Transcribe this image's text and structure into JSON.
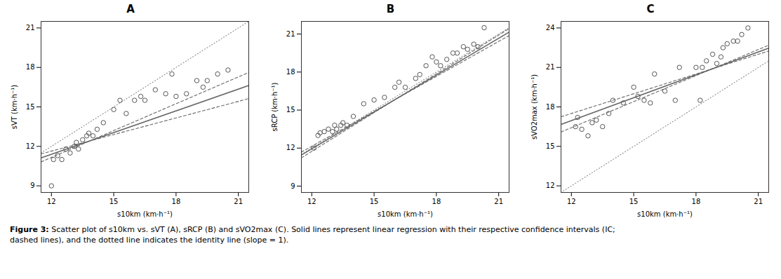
{
  "chart_data": [
    {
      "type": "scatter",
      "title": "A",
      "xlabel": "s10km (km·h⁻¹)",
      "ylabel": "sVT (km·h⁻¹)",
      "xlim": [
        11.5,
        21.5
      ],
      "ylim": [
        8.5,
        21.5
      ],
      "xticks": [
        12,
        15,
        18,
        21
      ],
      "yticks": [
        9,
        12,
        15,
        18,
        21
      ],
      "grid": false,
      "series": [
        {
          "type": "line",
          "line_style": "dotted",
          "color": "#888888",
          "x": [
            11.5,
            21.5
          ],
          "values": [
            11.5,
            21.5
          ]
        },
        {
          "type": "line",
          "line_style": "dashed",
          "color": "#666666",
          "x": [
            11.5,
            21.5
          ],
          "values": [
            10.82,
            17.62
          ]
        },
        {
          "type": "line",
          "line_style": "dashed",
          "color": "#666666",
          "x": [
            11.5,
            21.5
          ],
          "values": [
            11.43,
            15.63
          ]
        },
        {
          "type": "line",
          "line_style": "solid",
          "color": "#666666",
          "x": [
            11.5,
            21.5
          ],
          "values": [
            11.125,
            16.625
          ]
        },
        {
          "type": "scatter",
          "marker": "o",
          "color": "#555555",
          "x": [
            12.0,
            12.1,
            12.3,
            12.5,
            12.7,
            12.9,
            13.1,
            13.2,
            13.3,
            13.5,
            13.7,
            13.8,
            14.0,
            14.2,
            14.5,
            15.0,
            15.3,
            15.6,
            16.0,
            16.3,
            16.5,
            17.0,
            17.5,
            17.8,
            18.0,
            18.5,
            19.0,
            19.3,
            19.5,
            20.0,
            20.5
          ],
          "values": [
            9.0,
            11.0,
            11.3,
            11.0,
            11.8,
            11.5,
            12.0,
            12.3,
            11.8,
            12.5,
            12.8,
            13.0,
            12.8,
            13.3,
            13.8,
            14.8,
            15.5,
            14.5,
            15.5,
            15.8,
            15.5,
            16.3,
            16.0,
            17.5,
            15.8,
            16.0,
            17.0,
            16.5,
            17.0,
            17.5,
            17.8
          ]
        }
      ]
    },
    {
      "type": "scatter",
      "title": "B",
      "xlabel": "s10km (km·h⁻¹)",
      "ylabel": "sRCP (km·h⁻¹)",
      "xlim": [
        11.5,
        21.5
      ],
      "ylim": [
        8.5,
        22.0
      ],
      "xticks": [
        12,
        15,
        18,
        21
      ],
      "yticks": [
        9,
        12,
        15,
        18,
        21
      ],
      "grid": false,
      "series": [
        {
          "type": "line",
          "line_style": "dotted",
          "color": "#888888",
          "x": [
            11.5,
            21.5
          ],
          "values": [
            11.5,
            21.5
          ]
        },
        {
          "type": "line",
          "line_style": "dashed",
          "color": "#666666",
          "x": [
            11.5,
            21.5
          ],
          "values": [
            11.23,
            21.43
          ]
        },
        {
          "type": "line",
          "line_style": "dashed",
          "color": "#666666",
          "x": [
            11.5,
            21.5
          ],
          "values": [
            11.68,
            20.88
          ]
        },
        {
          "type": "line",
          "line_style": "solid",
          "color": "#666666",
          "x": [
            11.5,
            21.5
          ],
          "values": [
            11.455,
            21.155
          ]
        },
        {
          "type": "scatter",
          "marker": "o",
          "color": "#555555",
          "x": [
            12.1,
            12.3,
            12.4,
            12.6,
            12.8,
            13.0,
            13.1,
            13.2,
            13.4,
            13.5,
            13.7,
            14.0,
            14.5,
            15.0,
            15.5,
            16.0,
            16.2,
            16.5,
            17.0,
            17.2,
            17.5,
            17.8,
            18.0,
            18.2,
            18.5,
            18.8,
            19.0,
            19.3,
            19.5,
            19.8,
            20.0,
            20.3
          ],
          "values": [
            12.0,
            13.0,
            13.2,
            13.3,
            13.5,
            13.3,
            13.8,
            13.5,
            13.8,
            14.0,
            13.8,
            14.5,
            15.5,
            15.8,
            16.0,
            16.8,
            17.2,
            16.8,
            17.5,
            17.8,
            18.5,
            19.2,
            18.8,
            18.5,
            19.0,
            19.5,
            19.5,
            20.0,
            19.8,
            20.2,
            20.0,
            21.5
          ]
        }
      ]
    },
    {
      "type": "scatter",
      "title": "C",
      "xlabel": "s10km (km·h⁻¹)",
      "ylabel": "sVO2max (km·h⁻¹)",
      "xlim": [
        11.5,
        21.5
      ],
      "ylim": [
        11.5,
        24.5
      ],
      "xticks": [
        12,
        15,
        18,
        21
      ],
      "yticks": [
        12,
        15,
        18,
        21,
        24
      ],
      "grid": false,
      "series": [
        {
          "type": "line",
          "line_style": "dotted",
          "color": "#888888",
          "x": [
            11.5,
            21.5
          ],
          "values": [
            11.5,
            21.5
          ]
        },
        {
          "type": "line",
          "line_style": "dashed",
          "color": "#666666",
          "x": [
            11.5,
            21.5
          ],
          "values": [
            16.09,
            22.69
          ]
        },
        {
          "type": "line",
          "line_style": "dashed",
          "color": "#666666",
          "x": [
            11.5,
            21.5
          ],
          "values": [
            17.25,
            22.25
          ]
        },
        {
          "type": "line",
          "line_style": "solid",
          "color": "#666666",
          "x": [
            11.5,
            21.5
          ],
          "values": [
            16.67,
            22.47
          ]
        },
        {
          "type": "scatter",
          "marker": "o",
          "color": "#555555",
          "x": [
            12.2,
            12.3,
            12.5,
            12.8,
            13.0,
            13.2,
            13.5,
            13.8,
            14.0,
            14.5,
            15.0,
            15.2,
            15.5,
            15.8,
            16.0,
            16.5,
            17.0,
            17.2,
            18.0,
            18.2,
            18.3,
            18.5,
            18.8,
            19.0,
            19.2,
            19.3,
            19.5,
            19.8,
            20.0,
            20.2,
            20.5
          ],
          "values": [
            16.5,
            17.2,
            16.3,
            15.8,
            16.8,
            17.0,
            16.5,
            17.5,
            18.5,
            18.3,
            19.5,
            18.8,
            18.5,
            18.3,
            20.5,
            19.2,
            18.5,
            21.0,
            21.0,
            18.5,
            21.0,
            21.5,
            22.0,
            21.3,
            21.8,
            22.5,
            22.8,
            23.0,
            23.0,
            23.5,
            24.0
          ]
        }
      ]
    }
  ],
  "caption_bold": "Figure 3:",
  "caption": "Scatter plot of s10km vs. sVT (A), sRCP (B) and sVO2max (C). Solid lines represent linear regression with their respective confidence intervals (IC;\ndashed lines), and the dotted line indicates the identity line (slope = 1)."
}
